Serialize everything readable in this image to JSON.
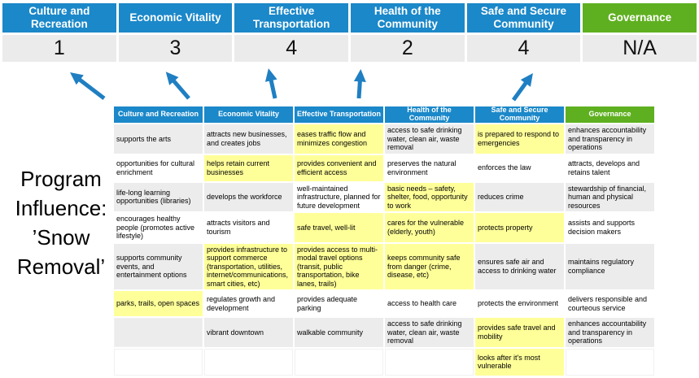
{
  "title": {
    "text": "Program Influence: ’Snow Removal’"
  },
  "summary": {
    "columns": [
      {
        "name": "Culture and Recreation",
        "score": "1",
        "theme": "blue"
      },
      {
        "name": "Economic Vitality",
        "score": "3",
        "theme": "blue"
      },
      {
        "name": "Effective Transportation",
        "score": "4",
        "theme": "blue"
      },
      {
        "name": "Health of the Community",
        "score": "2",
        "theme": "blue"
      },
      {
        "name": "Safe and Secure Community",
        "score": "4",
        "theme": "blue"
      },
      {
        "name": "Governance",
        "score": "N/A",
        "theme": "green"
      }
    ]
  },
  "matrix": {
    "headers": [
      {
        "label": "Culture and Recreation",
        "theme": "blue"
      },
      {
        "label": "Economic Vitality",
        "theme": "blue"
      },
      {
        "label": "Effective Transportation",
        "theme": "blue"
      },
      {
        "label": "Health of the Community",
        "theme": "blue"
      },
      {
        "label": "Safe and Secure Community",
        "theme": "blue"
      },
      {
        "label": "Governance",
        "theme": "green"
      }
    ],
    "rows": [
      [
        {
          "text": "supports the arts",
          "bg": "gray"
        },
        {
          "text": "attracts new businesses, and creates jobs",
          "bg": "gray"
        },
        {
          "text": "eases traffic flow and minimizes congestion",
          "bg": "yellow"
        },
        {
          "text": "access to safe drinking water, clean air, waste removal",
          "bg": "gray"
        },
        {
          "text": "is prepared to respond to emergencies",
          "bg": "yellow"
        },
        {
          "text": "enhances accountability and transparency in operations",
          "bg": "gray"
        }
      ],
      [
        {
          "text": "opportunities for cultural enrichment",
          "bg": "white"
        },
        {
          "text": "helps retain current businesses",
          "bg": "yellow"
        },
        {
          "text": "provides convenient and efficient access",
          "bg": "yellow"
        },
        {
          "text": "preserves the natural environment",
          "bg": "white"
        },
        {
          "text": "enforces the law",
          "bg": "white"
        },
        {
          "text": "attracts, develops and retains talent",
          "bg": "white"
        }
      ],
      [
        {
          "text": "life-long learning opportunities (libraries)",
          "bg": "gray"
        },
        {
          "text": "develops the workforce",
          "bg": "gray"
        },
        {
          "text": "well-maintained infrastructure, planned for future development",
          "bg": "white"
        },
        {
          "text": "basic needs – safety, shelter, food, opportunity to work",
          "bg": "yellow"
        },
        {
          "text": "reduces crime",
          "bg": "gray"
        },
        {
          "text": "stewardship of financial, human and physical resources",
          "bg": "gray"
        }
      ],
      [
        {
          "text": "encourages healthy people (promotes active lifestyle)",
          "bg": "white"
        },
        {
          "text": "attracts visitors and tourism",
          "bg": "white"
        },
        {
          "text": "safe travel, well-lit",
          "bg": "yellow"
        },
        {
          "text": "cares for the vulnerable (elderly, youth)",
          "bg": "yellow"
        },
        {
          "text": "protects property",
          "bg": "yellow"
        },
        {
          "text": "assists and supports decision makers",
          "bg": "white"
        }
      ],
      [
        {
          "text": "supports community events, and entertainment options",
          "bg": "gray"
        },
        {
          "text": "provides infrastructure to support commerce (transportation, utilities, internet/communications, smart cities, etc)",
          "bg": "yellow"
        },
        {
          "text": "provides access to multi-modal travel options (transit, public transportation, bike lanes, trails)",
          "bg": "yellow"
        },
        {
          "text": "keeps community safe from danger (crime, disease, etc)",
          "bg": "yellow"
        },
        {
          "text": "ensures safe air and access to drinking water",
          "bg": "gray"
        },
        {
          "text": "maintains regulatory compliance",
          "bg": "gray"
        }
      ],
      [
        {
          "text": "parks, trails, open spaces",
          "bg": "yellow"
        },
        {
          "text": "regulates growth and development",
          "bg": "white"
        },
        {
          "text": "provides adequate parking",
          "bg": "white"
        },
        {
          "text": "access to health care",
          "bg": "white"
        },
        {
          "text": "protects the environment",
          "bg": "white"
        },
        {
          "text": "delivers responsible and courteous service",
          "bg": "white"
        }
      ],
      [
        {
          "text": "",
          "bg": "gray"
        },
        {
          "text": "vibrant downtown",
          "bg": "gray"
        },
        {
          "text": "walkable community",
          "bg": "gray"
        },
        {
          "text": "access to safe drinking water, clean air, waste removal",
          "bg": "gray"
        },
        {
          "text": "provides safe travel and mobility",
          "bg": "yellow"
        },
        {
          "text": "enhances accountability and transparency in operations",
          "bg": "gray"
        }
      ],
      [
        {
          "text": "",
          "bg": "white"
        },
        {
          "text": "",
          "bg": "white"
        },
        {
          "text": "",
          "bg": "white"
        },
        {
          "text": "",
          "bg": "white"
        },
        {
          "text": "looks after it's most vulnerable",
          "bg": "yellow"
        },
        {
          "text": "",
          "bg": "white"
        }
      ]
    ]
  },
  "colors": {
    "header_blue": "#1b88c9",
    "header_green": "#5fb020",
    "highlight_yellow": "#ffff99",
    "band_gray": "#ececec",
    "score_row_gray": "#ebebeb",
    "arrow_blue": "#1f7fc2"
  }
}
